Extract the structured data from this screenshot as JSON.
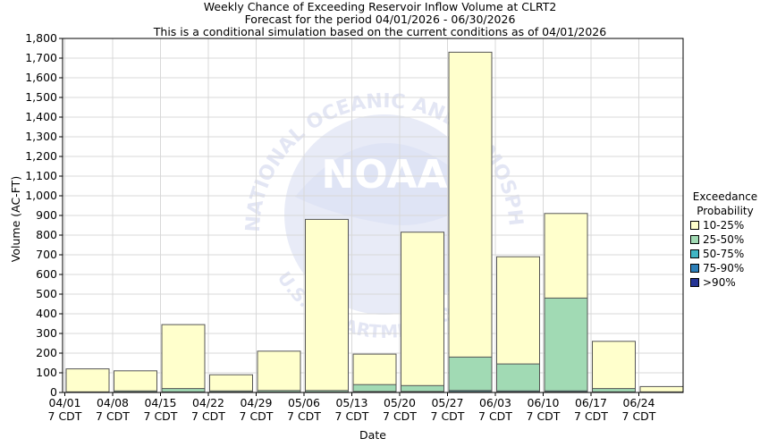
{
  "chart_data": {
    "type": "bar",
    "title": "Weekly Chance of Exceeding Reservoir Inflow Volume at CLRT2",
    "subtitle_1": "Forecast for the period 04/01/2026 - 06/30/2026",
    "subtitle_2": "This is a conditional simulation based on the current conditions as of 04/01/2026",
    "xlabel": "Date",
    "ylabel": "Volume (AC-FT)",
    "ylim": [
      0,
      1800
    ],
    "yticks": [
      "0",
      "100",
      "200",
      "300",
      "400",
      "500",
      "600",
      "700",
      "800",
      "900",
      "1,000",
      "1,100",
      "1,200",
      "1,300",
      "1,400",
      "1,500",
      "1,600",
      "1,700",
      "1,800"
    ],
    "categories": [
      {
        "date": "04/01",
        "tz": "7 CDT"
      },
      {
        "date": "04/08",
        "tz": "7 CDT"
      },
      {
        "date": "04/15",
        "tz": "7 CDT"
      },
      {
        "date": "04/22",
        "tz": "7 CDT"
      },
      {
        "date": "04/29",
        "tz": "7 CDT"
      },
      {
        "date": "05/06",
        "tz": "7 CDT"
      },
      {
        "date": "05/13",
        "tz": "7 CDT"
      },
      {
        "date": "05/20",
        "tz": "7 CDT"
      },
      {
        "date": "05/27",
        "tz": "7 CDT"
      },
      {
        "date": "06/03",
        "tz": "7 CDT"
      },
      {
        "date": "06/10",
        "tz": "7 CDT"
      },
      {
        "date": "06/17",
        "tz": "7 CDT"
      },
      {
        "date": "06/24",
        "tz": "7 CDT"
      }
    ],
    "legend_title_1": "Exceedance",
    "legend_title_2": "Probability",
    "legend_placement": "right",
    "grid": true,
    "series": [
      {
        "name": "10-25%",
        "color": "#ffffcc",
        "values": [
          120,
          110,
          345,
          90,
          210,
          880,
          195,
          815,
          1730,
          690,
          910,
          260,
          30
        ]
      },
      {
        "name": "25-50%",
        "color": "#a1dab4",
        "values": [
          3,
          8,
          20,
          8,
          10,
          10,
          40,
          35,
          180,
          145,
          480,
          20,
          3
        ]
      },
      {
        "name": "50-75%",
        "color": "#41b6c4",
        "values": [
          1,
          2,
          3,
          2,
          2,
          2,
          5,
          5,
          10,
          8,
          8,
          3,
          1
        ]
      },
      {
        "name": "75-90%",
        "color": "#2c7fb8",
        "values": [
          0,
          1,
          1,
          1,
          1,
          1,
          2,
          2,
          4,
          3,
          3,
          1,
          0
        ]
      },
      {
        "name": ">90%",
        "color": "#253494",
        "values": [
          0,
          0,
          0,
          0,
          0,
          0,
          1,
          1,
          1,
          1,
          1,
          0,
          0
        ]
      }
    ],
    "watermark": {
      "agency_text": "NATIONAL OCEANIC AND ATMOSPHERIC ADMINISTRATION",
      "logo_text": "NOAA",
      "dept_text": "U.S. DEPARTMENT OF COMMERCE"
    }
  }
}
